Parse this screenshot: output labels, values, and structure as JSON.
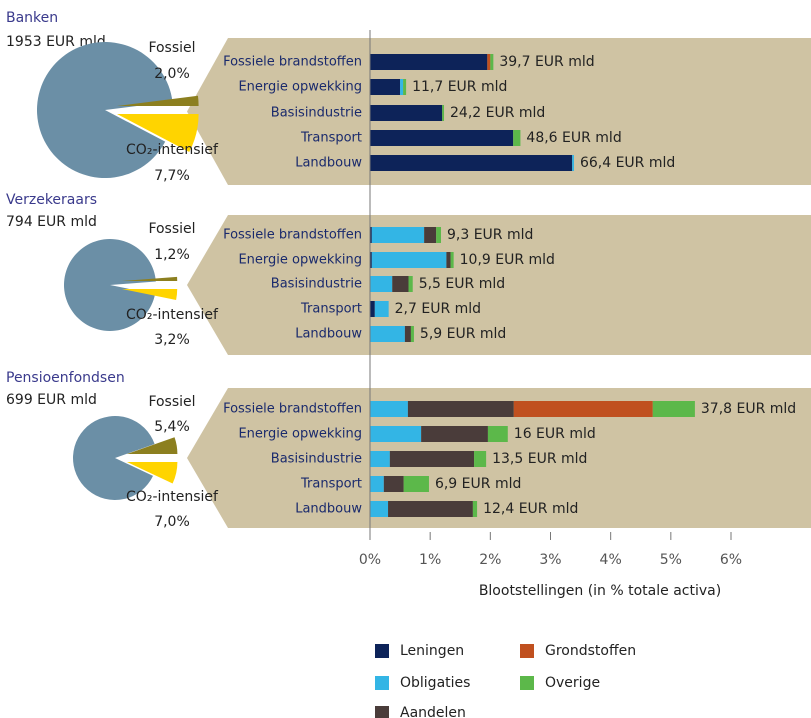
{
  "chart_data": [
    {
      "type": "bar",
      "title": "Banken",
      "subtitle": "1953 EUR mld",
      "pie": {
        "labels": [
          "Fossiel",
          "CO₂-intensief"
        ],
        "values": [
          2.0,
          7.7
        ],
        "value_labels": [
          "2,0%",
          "7,7%"
        ],
        "colors": [
          "#8c7f1f",
          "#ffd400"
        ],
        "rest_color": "#6b8fa6"
      },
      "categories": [
        "Fossiele brandstoffen",
        "Energie opwekking",
        "Basisindustrie",
        "Transport",
        "Landbouw"
      ],
      "series": [
        {
          "name": "Leningen",
          "color": "#0d2359",
          "values": [
            1.95,
            0.5,
            1.2,
            2.38,
            3.36
          ]
        },
        {
          "name": "Obligaties",
          "color": "#33b5e5",
          "values": [
            0,
            0.05,
            0,
            0,
            0.03
          ]
        },
        {
          "name": "Aandelen",
          "color": "#4a3c3a",
          "values": [
            0,
            0,
            0,
            0,
            0
          ]
        },
        {
          "name": "Grondstoffen",
          "color": "#c0501f",
          "values": [
            0.05,
            0,
            0,
            0,
            0
          ]
        },
        {
          "name": "Overige",
          "color": "#5cb84a",
          "values": [
            0.05,
            0.05,
            0.03,
            0.12,
            0
          ]
        }
      ],
      "total_labels": [
        "39,7 EUR mld",
        "11,7 EUR mld",
        "24,2 EUR mld",
        "48,6 EUR mld",
        "66,4 EUR mld"
      ],
      "xlim": [
        0,
        6
      ]
    },
    {
      "type": "bar",
      "title": "Verzekeraars",
      "subtitle": "794 EUR mld",
      "pie": {
        "labels": [
          "Fossiel",
          "CO₂-intensief"
        ],
        "values": [
          1.2,
          3.2
        ],
        "value_labels": [
          "1,2%",
          "3,2%"
        ],
        "colors": [
          "#8c7f1f",
          "#ffd400"
        ],
        "rest_color": "#6b8fa6"
      },
      "categories": [
        "Fossiele brandstoffen",
        "Energie opwekking",
        "Basisindustrie",
        "Transport",
        "Landbouw"
      ],
      "series": [
        {
          "name": "Leningen",
          "color": "#0d2359",
          "values": [
            0.03,
            0.03,
            0,
            0.08,
            0
          ]
        },
        {
          "name": "Obligaties",
          "color": "#33b5e5",
          "values": [
            0.87,
            1.24,
            0.37,
            0.23,
            0.58
          ]
        },
        {
          "name": "Aandelen",
          "color": "#4a3c3a",
          "values": [
            0.2,
            0.07,
            0.27,
            0,
            0.1
          ]
        },
        {
          "name": "Grondstoffen",
          "color": "#c0501f",
          "values": [
            0,
            0,
            0,
            0,
            0
          ]
        },
        {
          "name": "Overige",
          "color": "#5cb84a",
          "values": [
            0.08,
            0.05,
            0.07,
            0,
            0.05
          ]
        }
      ],
      "total_labels": [
        "9,3 EUR mld",
        "10,9 EUR mld",
        "5,5 EUR mld",
        "2,7 EUR mld",
        "5,9 EUR mld"
      ],
      "xlim": [
        0,
        6
      ]
    },
    {
      "type": "bar",
      "title": "Pensioenfondsen",
      "subtitle": "699 EUR mld",
      "pie": {
        "labels": [
          "Fossiel",
          "CO₂-intensief"
        ],
        "values": [
          5.4,
          7.0
        ],
        "value_labels": [
          "5,4%",
          "7,0%"
        ],
        "colors": [
          "#8c7f1f",
          "#ffd400"
        ],
        "rest_color": "#6b8fa6"
      },
      "categories": [
        "Fossiele brandstoffen",
        "Energie opwekking",
        "Basisindustrie",
        "Transport",
        "Landbouw"
      ],
      "series": [
        {
          "name": "Leningen",
          "color": "#0d2359",
          "values": [
            0,
            0,
            0,
            0,
            0
          ]
        },
        {
          "name": "Obligaties",
          "color": "#33b5e5",
          "values": [
            0.63,
            0.85,
            0.33,
            0.23,
            0.3
          ]
        },
        {
          "name": "Aandelen",
          "color": "#4a3c3a",
          "values": [
            1.76,
            1.11,
            1.4,
            0.33,
            1.41
          ]
        },
        {
          "name": "Grondstoffen",
          "color": "#c0501f",
          "values": [
            2.31,
            0,
            0,
            0,
            0
          ]
        },
        {
          "name": "Overige",
          "color": "#5cb84a",
          "values": [
            0.7,
            0.33,
            0.2,
            0.42,
            0.07
          ]
        }
      ],
      "total_labels": [
        "37,8 EUR mld",
        "16 EUR mld",
        "13,5 EUR mld",
        "6,9 EUR mld",
        "12,4 EUR mld"
      ],
      "xlim": [
        0,
        6
      ],
      "xticks": [
        {
          "value": 0,
          "label": "0%"
        },
        {
          "value": 1,
          "label": "1%"
        },
        {
          "value": 2,
          "label": "2%"
        },
        {
          "value": 3,
          "label": "3%"
        },
        {
          "value": 4,
          "label": "4%"
        },
        {
          "value": 5,
          "label": "5%"
        },
        {
          "value": 6,
          "label": "6%"
        }
      ],
      "xlabel": "Blootstellingen (in % totale activa)"
    }
  ]
}
